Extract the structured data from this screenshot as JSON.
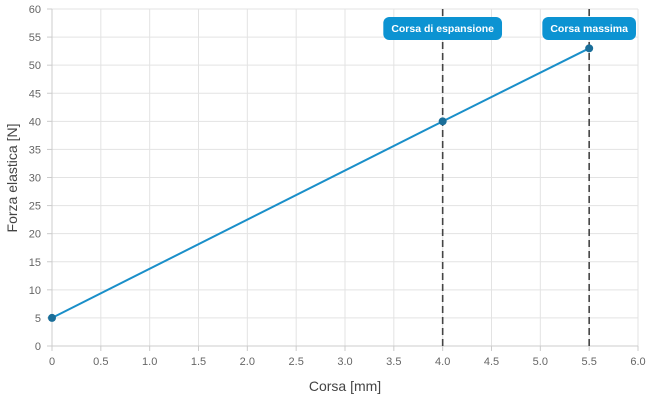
{
  "chart_data": {
    "type": "line",
    "title": "",
    "xlabel": "Corsa [mm]",
    "ylabel": "Forza elastica [N]",
    "xlim": [
      0,
      6
    ],
    "ylim": [
      0,
      60
    ],
    "x_ticks": [
      0,
      0.5,
      1,
      1.5,
      2,
      2.5,
      3,
      3.5,
      4,
      4.5,
      5,
      5.5,
      6
    ],
    "x_tick_labels": [
      "0",
      "0.5",
      "1.0",
      "1.5",
      "2.0",
      "2.5",
      "3.0",
      "3.5",
      "4.0",
      "4.5",
      "5.0",
      "5.5",
      "6.0"
    ],
    "y_ticks": [
      0,
      5,
      10,
      15,
      20,
      25,
      30,
      35,
      40,
      45,
      50,
      55,
      60
    ],
    "y_tick_labels": [
      "0",
      "5",
      "10",
      "15",
      "20",
      "25",
      "30",
      "35",
      "40",
      "45",
      "50",
      "55",
      "60"
    ],
    "grid": true,
    "series": [
      {
        "x": [
          0,
          4,
          5.5
        ],
        "y": [
          5,
          40,
          53
        ],
        "color": "#1a8fc9"
      }
    ],
    "annotations": [
      {
        "label": "Corsa di espansione",
        "x": 4.0
      },
      {
        "label": "Corsa massima",
        "x": 5.5
      }
    ],
    "colors": {
      "line": "#1a8fc9",
      "point": "#1a6e99",
      "annotation_box": "#0c93d2",
      "annotation_line": "#444444",
      "grid": "#e3e3e3",
      "axis": "#cccccc"
    }
  }
}
